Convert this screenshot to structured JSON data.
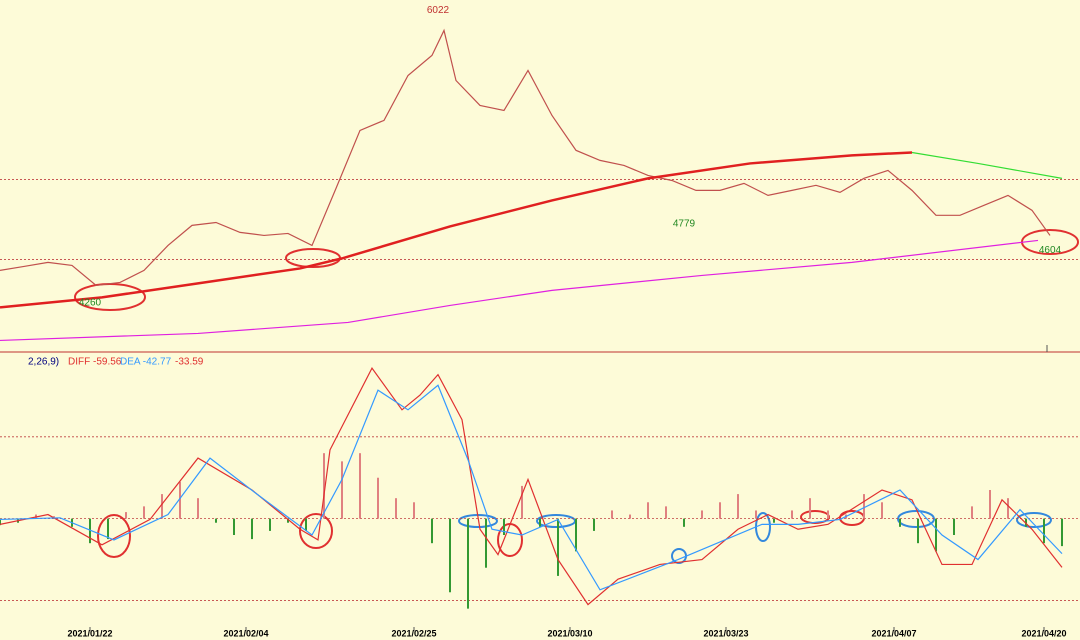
{
  "chart_data": [
    {
      "type": "line",
      "xlim": [
        0,
        180
      ],
      "ylim": [
        3870,
        6170
      ],
      "hlines": [
        4990,
        4465
      ],
      "series": [
        {
          "color": "#c0504d",
          "x": [
            0,
            4,
            8,
            12,
            16,
            20,
            24,
            28,
            32,
            36,
            40,
            44,
            48,
            52,
            56,
            60,
            64,
            68,
            72,
            74,
            76,
            80,
            84,
            88,
            92,
            96,
            100,
            104,
            108,
            112,
            116,
            120,
            124,
            128,
            132,
            136,
            140,
            144,
            148,
            152,
            156,
            160,
            164,
            168,
            172,
            175
          ],
          "values": [
            4393,
            4419,
            4446,
            4426,
            4295,
            4314,
            4393,
            4557,
            4689,
            4708,
            4643,
            4623,
            4636,
            4557,
            4932,
            5313,
            5379,
            5674,
            5806,
            5970,
            5641,
            5477,
            5444,
            5707,
            5411,
            5182,
            5116,
            5083,
            5017,
            4984,
            4919,
            4919,
            4965,
            4886,
            4919,
            4952,
            4906,
            4998,
            5050,
            4919,
            4755,
            4755,
            4821,
            4886,
            4788,
            4623
          ]
        },
        {
          "color": "#e02020",
          "x": [
            0,
            17,
            33,
            50,
            57,
            75,
            92,
            108,
            125,
            142,
            152
          ],
          "values": [
            4150,
            4216,
            4308,
            4406,
            4472,
            4682,
            4853,
            4998,
            5096,
            5149,
            5168
          ]
        },
        {
          "color": "#33dd33",
          "x": [
            152,
            163,
            177
          ],
          "values": [
            5168,
            5096,
            4998
          ]
        },
        {
          "color": "#e020e0",
          "x": [
            0,
            33,
            58,
            75,
            92,
            117,
            142,
            173
          ],
          "values": [
            3933,
            3979,
            4051,
            4163,
            4262,
            4360,
            4446,
            4590
          ]
        }
      ],
      "annotations": [
        {
          "x": 73,
          "y": 6022
        },
        {
          "x": 114,
          "y": 4779
        },
        {
          "x": 175,
          "y": 4604
        },
        {
          "x": 15,
          "y": 4260
        }
      ]
    },
    {
      "type": "line",
      "params": "2,26,9)",
      "diff_label": "DIFF -59.56",
      "dea_label": "DEA -42.77",
      "macd_label": "-33.59",
      "xlim": [
        0,
        180
      ],
      "ylim": [
        -130,
        200
      ],
      "hlines": [
        100,
        0,
        -100
      ],
      "xticks": [
        {
          "value": 15,
          "label": "2021/01/22"
        },
        {
          "value": 41,
          "label": "2021/02/04"
        },
        {
          "value": 69,
          "label": "2021/02/25"
        },
        {
          "value": 95,
          "label": "2021/03/10"
        },
        {
          "value": 121,
          "label": "2021/03/23"
        },
        {
          "value": 149,
          "label": "2021/04/07"
        },
        {
          "value": 174,
          "label": "2021/04/20"
        }
      ],
      "series": [
        {
          "type": "bar",
          "color": "#e08080",
          "neg_color": "#339933",
          "x": [
            0,
            3,
            6,
            9,
            12,
            15,
            18,
            21,
            24,
            27,
            30,
            33,
            36,
            39,
            42,
            45,
            48,
            51,
            54,
            57,
            60,
            63,
            66,
            69,
            72,
            75,
            78,
            81,
            84,
            87,
            90,
            93,
            96,
            99,
            102,
            105,
            108,
            111,
            114,
            117,
            120,
            123,
            126,
            129,
            132,
            135,
            138,
            141,
            144,
            147,
            150,
            153,
            156,
            159,
            162,
            165,
            168,
            171,
            174,
            177
          ],
          "values": [
            -8,
            -5,
            5,
            3,
            -10,
            -30,
            -25,
            8,
            15,
            30,
            45,
            25,
            -5,
            -20,
            -25,
            -15,
            -5,
            -15,
            80,
            70,
            80,
            50,
            25,
            20,
            -30,
            -90,
            -110,
            -60,
            -20,
            40,
            -10,
            -70,
            -40,
            -15,
            10,
            5,
            20,
            15,
            -10,
            10,
            20,
            30,
            10,
            -5,
            10,
            25,
            10,
            5,
            30,
            20,
            -10,
            -30,
            -40,
            -20,
            15,
            35,
            25,
            -10,
            -30,
            -33.59
          ]
        },
        {
          "type": "line",
          "color": "#e03030",
          "x": [
            0,
            8,
            17,
            25,
            33,
            42,
            50,
            53,
            55,
            62,
            67,
            70,
            73,
            77,
            80,
            83,
            88,
            93,
            98,
            103,
            110,
            117,
            123,
            128,
            133,
            138,
            147,
            152,
            157,
            162,
            167,
            172,
            177
          ],
          "values": [
            -7,
            5,
            -32,
            -1,
            74,
            35,
            -13,
            -26,
            84,
            184,
            133,
            151,
            176,
            121,
            -13,
            -44,
            48,
            -50,
            -105,
            -74,
            -56,
            -50,
            -13,
            5,
            -13,
            -7,
            35,
            23,
            -56,
            -56,
            23,
            -13,
            -59.56
          ]
        },
        {
          "type": "line",
          "color": "#3399ff",
          "x": [
            0,
            10,
            19,
            28,
            35,
            43,
            52,
            57,
            63,
            68,
            73,
            78,
            82,
            87,
            93,
            100,
            113,
            127,
            133,
            140,
            150,
            157,
            163,
            170,
            177
          ],
          "values": [
            -1,
            1,
            -26,
            5,
            74,
            29,
            -20,
            48,
            157,
            133,
            163,
            72,
            -13,
            -20,
            -1,
            -87,
            -50,
            -7,
            -7,
            -1,
            35,
            -20,
            -50,
            11,
            -42.77
          ]
        }
      ]
    }
  ]
}
